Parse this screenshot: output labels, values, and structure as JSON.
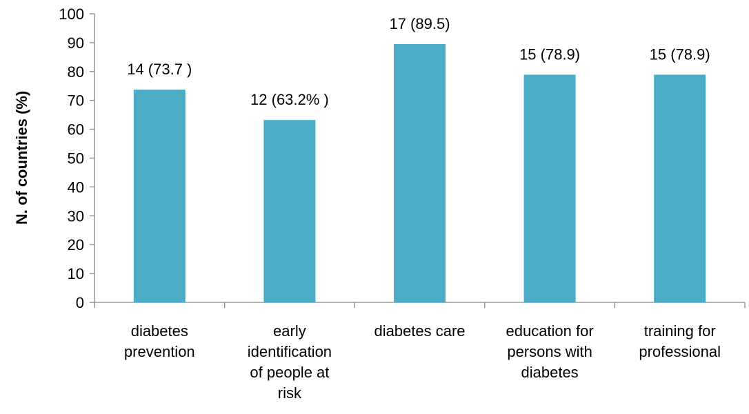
{
  "chart_data": {
    "type": "bar",
    "categories": [
      [
        "diabetes",
        "prevention"
      ],
      [
        "early",
        "identification",
        "of people at",
        "risk"
      ],
      [
        "diabetes care"
      ],
      [
        "education for",
        "persons with",
        "diabetes"
      ],
      [
        "training for",
        "professional"
      ]
    ],
    "values": [
      73.7,
      63.2,
      89.5,
      78.9,
      78.9
    ],
    "data_labels": [
      "14 (73.7 )",
      "12 (63.2% )",
      "17 (89.5)",
      "15 (78.9)",
      "15 (78.9)"
    ],
    "ylabel": "N. of countries (%)",
    "xlabel": "",
    "ylim": [
      0,
      100
    ],
    "yticks": [
      "0",
      "10",
      "20",
      "30",
      "40",
      "50",
      "60",
      "70",
      "80",
      "90",
      "100"
    ],
    "bar_color": "#4BACC6",
    "grid": false,
    "legend": "none"
  }
}
